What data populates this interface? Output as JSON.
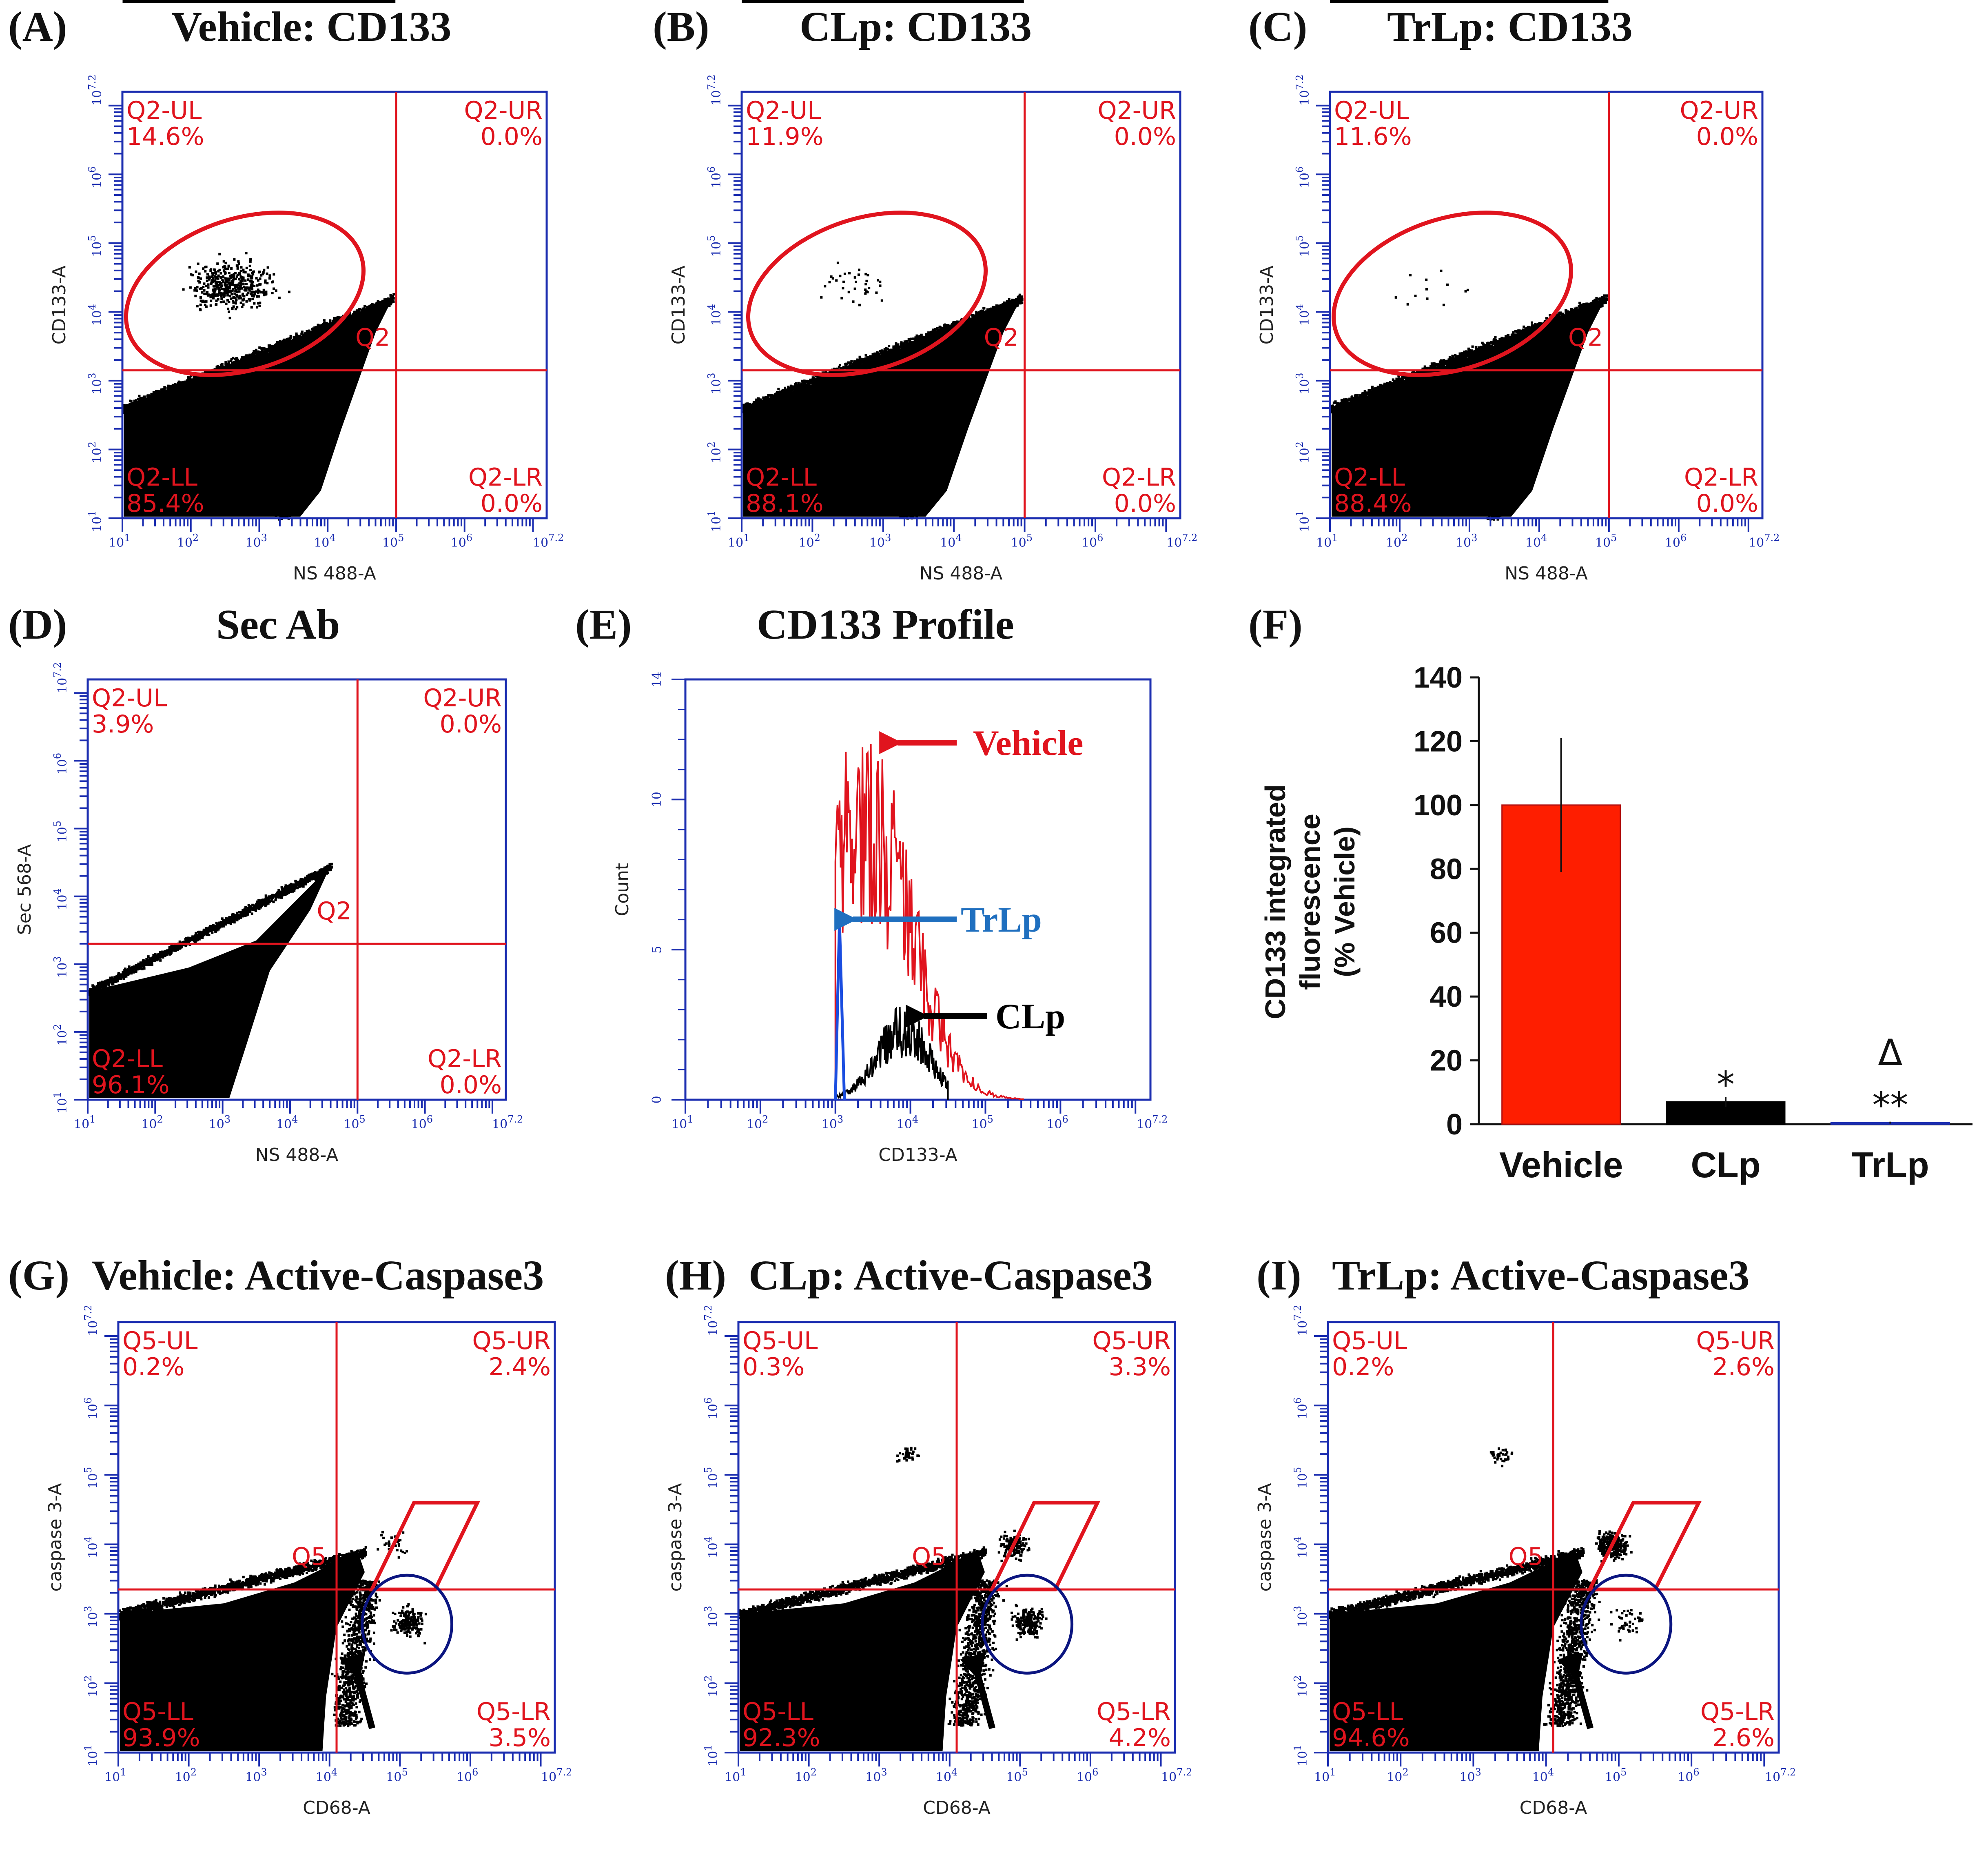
{
  "panels": {
    "A": {
      "letter": "(A)",
      "title": "Vehicle: CD133",
      "xlabel": "NS 488-A",
      "ylabel": "CD133-A",
      "q_ul": "Q2-UL",
      "q_ul_val": "14.6%",
      "q_ur": "Q2-UR",
      "q_ur_val": "0.0%",
      "q_ll": "Q2-LL",
      "q_ll_val": "85.4%",
      "q_lr": "Q2-LR",
      "q_lr_val": "0.0%",
      "gate": "Q2"
    },
    "B": {
      "letter": "(B)",
      "title": "CLp: CD133",
      "xlabel": "NS 488-A",
      "ylabel": "CD133-A",
      "q_ul": "Q2-UL",
      "q_ul_val": "11.9%",
      "q_ur": "Q2-UR",
      "q_ur_val": "0.0%",
      "q_ll": "Q2-LL",
      "q_ll_val": "88.1%",
      "q_lr": "Q2-LR",
      "q_lr_val": "0.0%",
      "gate": "Q2"
    },
    "C": {
      "letter": "(C)",
      "title": "TrLp: CD133",
      "xlabel": "NS 488-A",
      "ylabel": "CD133-A",
      "q_ul": "Q2-UL",
      "q_ul_val": "11.6%",
      "q_ur": "Q2-UR",
      "q_ur_val": "0.0%",
      "q_ll": "Q2-LL",
      "q_ll_val": "88.4%",
      "q_lr": "Q2-LR",
      "q_lr_val": "0.0%",
      "gate": "Q2"
    },
    "D": {
      "letter": "(D)",
      "title": "Sec Ab",
      "xlabel": "NS 488-A",
      "ylabel": "Sec 568-A",
      "q_ul": "Q2-UL",
      "q_ul_val": "3.9%",
      "q_ur": "Q2-UR",
      "q_ur_val": "0.0%",
      "q_ll": "Q2-LL",
      "q_ll_val": "96.1%",
      "q_lr": "Q2-LR",
      "q_lr_val": "0.0%",
      "gate": "Q2"
    },
    "E": {
      "letter": "(E)",
      "title": "CD133 Profile",
      "xlabel": "CD133-A",
      "ylabel": "Count",
      "vehicle": "Vehicle",
      "trlp": "TrLp",
      "clp": "CLp",
      "yticks": [
        "0",
        "5",
        "10",
        "14"
      ]
    },
    "F": {
      "letter": "(F)"
    },
    "G": {
      "letter": "(G)",
      "title": "Vehicle: Active-Caspase3",
      "xlabel": "CD68-A",
      "ylabel": "caspase 3-A",
      "q_ul": "Q5-UL",
      "q_ul_val": "0.2%",
      "q_ur": "Q5-UR",
      "q_ur_val": "2.4%",
      "q_ll": "Q5-LL",
      "q_ll_val": "93.9%",
      "q_lr": "Q5-LR",
      "q_lr_val": "3.5%",
      "gate": "Q5"
    },
    "H": {
      "letter": "(H)",
      "title": "CLp: Active-Caspase3",
      "xlabel": "CD68-A",
      "ylabel": "caspase 3-A",
      "q_ul": "Q5-UL",
      "q_ul_val": "0.3%",
      "q_ur": "Q5-UR",
      "q_ur_val": "3.3%",
      "q_ll": "Q5-LL",
      "q_ll_val": "92.3%",
      "q_lr": "Q5-LR",
      "q_lr_val": "4.2%",
      "gate": "Q5"
    },
    "I": {
      "letter": "(I)",
      "title": "TrLp: Active-Caspase3",
      "xlabel": "CD68-A",
      "ylabel": "caspase 3-A",
      "q_ul": "Q5-UL",
      "q_ul_val": "0.2%",
      "q_ur": "Q5-UR",
      "q_ur_val": "2.6%",
      "q_ll": "Q5-LL",
      "q_ll_val": "94.6%",
      "q_lr": "Q5-LR",
      "q_lr_val": "2.6%",
      "gate": "Q5"
    }
  },
  "log_ticks": {
    "labels": [
      "10",
      "10",
      "10",
      "10",
      "10",
      "10",
      "10"
    ],
    "exps": [
      "1",
      "2",
      "3",
      "4",
      "5",
      "6",
      "7.2"
    ]
  },
  "colors": {
    "red": "#e0141e",
    "blue": "#1b2db0",
    "navy": "#0b1580",
    "histblue": "#1a4de0",
    "arrowblue": "#1f6fbf",
    "black": "#000000"
  },
  "chart_data": [
    {
      "panel": "E",
      "type": "line",
      "title": "CD133 Profile",
      "xlabel": "CD133-A",
      "ylabel": "Count",
      "x_scale": "log10",
      "xlim": [
        1,
        7.2
      ],
      "ylim": [
        0,
        14
      ],
      "series": [
        {
          "name": "Vehicle",
          "color": "#e0141e",
          "peak_x_log": 3.4,
          "peak_count": 12.5,
          "range_log": [
            3.0,
            5.5
          ]
        },
        {
          "name": "TrLp",
          "color": "#1a4de0",
          "peak_x_log": 3.0,
          "peak_count": 6,
          "range_log": [
            3.0,
            3.1
          ]
        },
        {
          "name": "CLp",
          "color": "#000000",
          "peak_x_log": 3.9,
          "peak_count": 3,
          "range_log": [
            3.0,
            4.5
          ]
        }
      ]
    },
    {
      "panel": "F",
      "type": "bar",
      "categories": [
        "Vehicle",
        "CLp",
        "TrLp"
      ],
      "values": [
        100,
        7,
        0.5
      ],
      "errors": [
        21,
        1.5,
        0.3
      ],
      "colors": [
        "#fe1e00",
        "#000000",
        "#1b2db0"
      ],
      "significance": [
        "",
        "*",
        "**"
      ],
      "extra_marker": {
        "category": "TrLp",
        "symbol": "Δ"
      },
      "ylabel_line1": "CD133 integrated",
      "ylabel_line2": "fluorescence",
      "ylabel_line3": "(% Vehicle)",
      "ylim": [
        0,
        140
      ],
      "yticks": [
        0,
        20,
        40,
        60,
        80,
        100,
        120,
        140
      ],
      "ytick_labels": [
        "0",
        "20",
        "40",
        "60",
        "80",
        "100",
        "120",
        "140"
      ]
    }
  ]
}
